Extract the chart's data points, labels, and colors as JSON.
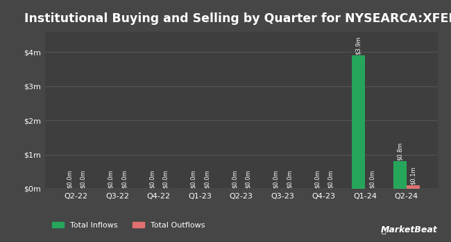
{
  "title": "Institutional Buying and Selling by Quarter for NYSEARCA:XFEB",
  "quarters": [
    "Q2-22",
    "Q3-22",
    "Q4-22",
    "Q1-23",
    "Q2-23",
    "Q3-23",
    "Q4-23",
    "Q1-24",
    "Q2-24"
  ],
  "inflows": [
    0.0,
    0.0,
    0.0,
    0.0,
    0.0,
    0.0,
    0.0,
    3.9,
    0.8
  ],
  "outflows": [
    0.0,
    0.0,
    0.0,
    0.0,
    0.0,
    0.0,
    0.0,
    0.0,
    0.1
  ],
  "inflow_labels": [
    "$0.0m",
    "$0.0m",
    "$0.0m",
    "$0.0m",
    "$0.0m",
    "$0.0m",
    "$0.0m",
    "$3.9m",
    "$0.8m"
  ],
  "outflow_labels": [
    "$0.0m",
    "$0.0m",
    "$0.0m",
    "$0.0m",
    "$0.0m",
    "$0.0m",
    "$0.0m",
    "$0.0m",
    "$0.1m"
  ],
  "inflow_color": "#26a65b",
  "outflow_color": "#e07070",
  "bg_color": "#464646",
  "plot_bg_color": "#3e3e3e",
  "text_color": "#ffffff",
  "grid_color": "#565656",
  "yticks": [
    0,
    1,
    2,
    3,
    4
  ],
  "ytick_labels": [
    "$0m",
    "$1m",
    "$2m",
    "$3m",
    "$4m"
  ],
  "ylim": [
    0,
    4.6
  ],
  "bar_width": 0.32,
  "title_fontsize": 12.5,
  "label_fontsize": 6.0,
  "axis_fontsize": 8,
  "legend_fontsize": 8
}
